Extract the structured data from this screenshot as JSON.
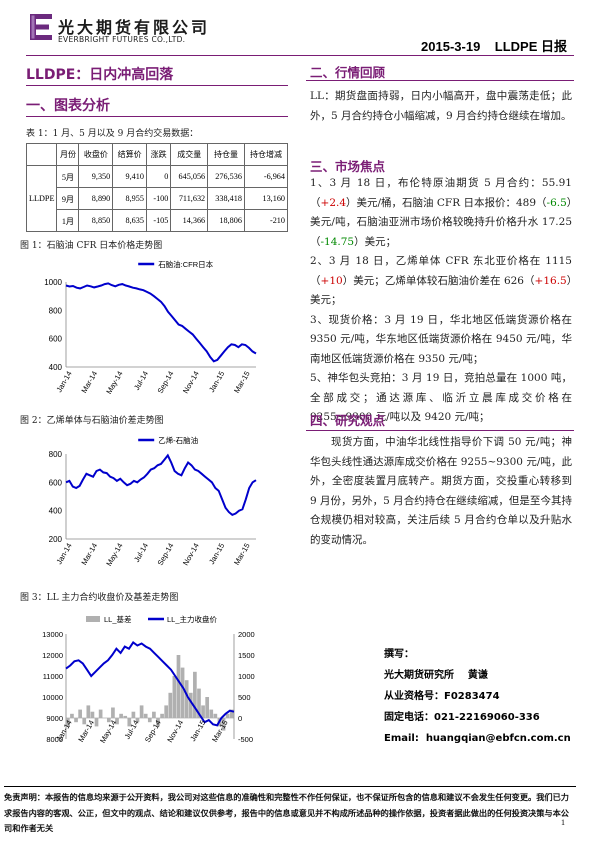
{
  "header": {
    "company_cn": "光大期货有限公司",
    "company_en": "EVERBRIGHT FUTURES CO.,LTD.",
    "date_product": "2015-3-19    LLDPE 日报",
    "accent_color": "#7a1d75",
    "logo_icon": "everbright-logo-icon"
  },
  "title": "LLDPE：日内冲高回落",
  "section1": {
    "title": "一、图表分析",
    "table_caption": "表 1：1 月、5 月以及 9 月合约交易数据：",
    "table": {
      "headers": [
        "",
        "月份",
        "收盘价",
        "结算价",
        "涨跌",
        "成交量",
        "持仓量",
        "持仓增减"
      ],
      "product": "LLDPE",
      "rows": [
        [
          "5月",
          "9,350",
          "9,410",
          "0",
          "645,056",
          "276,536",
          "-6,964"
        ],
        [
          "9月",
          "8,890",
          "8,955",
          "-100",
          "711,632",
          "338,418",
          "13,160"
        ],
        [
          "1月",
          "8,850",
          "8,635",
          "-105",
          "14,366",
          "18,806",
          "-210"
        ]
      ]
    }
  },
  "figure1": {
    "caption": "图 1：石脑油 CFR 日本价格走势图",
    "chart_data": {
      "type": "line",
      "series": [
        {
          "name": "石脑油:CFR日本",
          "color": "#0000cc",
          "values": [
            975,
            968,
            972,
            960,
            955,
            965,
            975,
            970,
            962,
            968,
            975,
            985,
            990,
            978,
            970,
            980,
            985,
            975,
            968,
            960,
            955,
            948,
            942,
            930,
            918,
            900,
            880,
            860,
            830,
            790,
            760,
            730,
            700,
            690,
            670,
            650,
            630,
            600,
            570,
            540,
            510,
            470,
            440,
            450,
            480,
            510,
            540,
            560,
            555,
            540,
            560,
            555,
            535,
            510,
            495
          ]
        }
      ],
      "x_ticks": [
        "Jan-14",
        "Mar-14",
        "May-14",
        "Jul-14",
        "Sep-14",
        "Nov-14",
        "Jan-15",
        "Mar-15"
      ],
      "y_ticks": [
        "400",
        "600",
        "800",
        "1000"
      ],
      "ylim": [
        400,
        1000
      ]
    }
  },
  "figure2": {
    "caption": "图 2：乙烯单体与石脑油价差走势图",
    "chart_data": {
      "type": "line",
      "series": [
        {
          "name": "乙烯-石脑油",
          "color": "#0000cc",
          "values": [
            600,
            610,
            570,
            560,
            575,
            620,
            660,
            650,
            640,
            680,
            690,
            670,
            665,
            640,
            630,
            610,
            625,
            600,
            580,
            590,
            610,
            600,
            620,
            635,
            660,
            690,
            700,
            720,
            730,
            760,
            790,
            740,
            680,
            660,
            650,
            700,
            740,
            720,
            690,
            680,
            660,
            640,
            620,
            600,
            560,
            540,
            480,
            420,
            390,
            370,
            380,
            400,
            410,
            480,
            560,
            600,
            615
          ]
        }
      ],
      "x_ticks": [
        "Jan-14",
        "Mar-14",
        "May-14",
        "Jul-14",
        "Sep-14",
        "Nov-14",
        "Jan-15",
        "Mar-15"
      ],
      "y_ticks": [
        "200",
        "400",
        "600",
        "800"
      ],
      "ylim": [
        200,
        800
      ]
    }
  },
  "figure3": {
    "caption": "图 3：LL 主力合约收盘价及基差走势图",
    "chart_data": {
      "type": "line",
      "series": [
        {
          "name": "LL_基差",
          "color": "#b0b0b0",
          "axis": "right",
          "values": [
            -200,
            100,
            -100,
            200,
            -150,
            300,
            150,
            -200,
            200,
            0,
            -100,
            250,
            -150,
            100,
            50,
            -200,
            150,
            -100,
            300,
            100,
            -100,
            150,
            -200,
            100,
            300,
            600,
            1000,
            1500,
            1200,
            900,
            600,
            1100,
            700,
            300,
            500,
            200,
            100,
            -200,
            -300,
            100,
            200
          ]
        },
        {
          "name": "LL_主力收盘价",
          "color": "#0000cc",
          "axis": "left",
          "values": [
            11350,
            11500,
            11700,
            11750,
            11600,
            11300,
            11000,
            11200,
            11400,
            11600,
            11750,
            12000,
            12300,
            12100,
            12400,
            12300,
            12600,
            12450,
            12550,
            12400,
            12300,
            12100,
            11900,
            11700,
            11500,
            11300,
            11000,
            10700,
            10400,
            10000,
            9700,
            9400,
            9100,
            8800,
            8900,
            8700,
            8650,
            9000,
            9200,
            9350,
            9300
          ]
        }
      ],
      "x_ticks": [
        "Jan-14",
        "Mar-14",
        "May-14",
        "Jul-14",
        "Sep-14",
        "Nov-14",
        "Jan-15",
        "Mar-15"
      ],
      "y_ticks_left": [
        "8000",
        "9000",
        "10000",
        "11000",
        "12000",
        "13000"
      ],
      "y_ticks_right": [
        "-500",
        "0",
        "500",
        "1000",
        "1500",
        "2000"
      ],
      "ylim_left": [
        8000,
        13000
      ],
      "ylim_right": [
        -500,
        2000
      ]
    }
  },
  "section2": {
    "title": "二、行情回顾",
    "text": "LL：期货盘面持弱，日内小幅高开，盘中震荡走低；此外，5 月合约持仓小幅缩减，9 月合约持仓继续在增加。"
  },
  "section3": {
    "title": "三、市场焦点",
    "items": [
      {
        "a": "1、3 月 18 日，布伦特原油期货 5 月合约：55.91（",
        "r": "+2.4",
        "b": "）美元/桶，石脑油 CFR 日本报价：489（",
        "g": "-6.5",
        "c": "）美元/吨，石脑油亚洲市场价格较晚持升价格升水 17.25（",
        "g2": "-14.75",
        "d": "）美元；"
      },
      {
        "a": "2、3 月 18 日，乙烯单体 CFR 东北亚价格在 1115（",
        "r": "+10",
        "b": "）美元；乙烯单体较石脑油价差在 626（",
        "r2": "+16.5",
        "c": "）美元；"
      },
      {
        "text": "3、现货价格：3 月 19 日，华北地区低端货源价格在 9350 元/吨，华东地区低端货源价格在 9450 元/吨，华南地区低端货源价格在 9350 元/吨；"
      },
      {
        "text": "5、神华包头竞拍：3 月 19 日，竞拍总量在 1000 吨，全部成交；通达源库、临沂立晨库成交价格在 9255~9300 元/吨以及 9420 元/吨；"
      }
    ]
  },
  "section4": {
    "title": "四、研究观点",
    "text": "现货方面，中油华北线性指导价下调 50 元/吨；神华包头线性通达源库成交价格在 9255~9300 元/吨，此外，全密度装置月底转产。期货方面，交投重心转移到 9 月份，另外，5 月合约持仓在继续缩减，但是至今其持仓规模仍相对较高，关注后续 5 月合约仓单以及升贴水的变动情况。"
  },
  "author": {
    "label": "撰写：",
    "org": "光大期货研究所    黄谦",
    "cert": "从业资格号：F0283474",
    "phone": "固定电话：021-22169060-336",
    "email": "Email:  huangqian@ebfcn.com.cn"
  },
  "disclaimer": "免责声明：本报告的信息均来源于公开资料，我公司对这些信息的准确性和完整性不作任何保证，也不保证所包含的信息和建议不会发生任何变更。我们已力求报告内容的客观、公正，但文中的观点、结论和建议仅供参考，报告中的信息或意见并不构成所述品种的操作依据，投资者据此做出的任何投资决策与本公司和作者无关",
  "page_number": "1"
}
